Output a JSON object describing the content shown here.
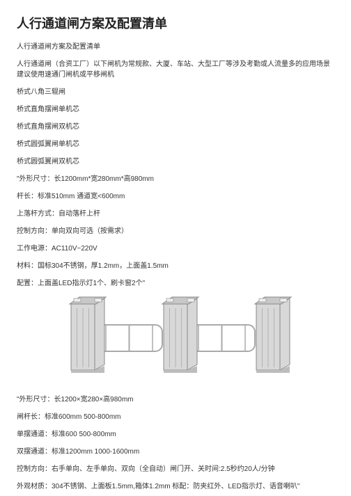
{
  "title": "人行通道闸方案及配置清单",
  "lines": [
    "人行通道闸方案及配置清单",
    "人行通道闸（合资工厂）以下闸机为常规款、大厦、车站、大型工厂等涉及考勤或人流量多的应用场景建议使用速通门闸机或平移闸机",
    "桥式八角三辊闸",
    "桥式直角摆闸单机芯",
    "桥式直角摆闸双机芯",
    "桥式圆弧翼闸单机芯",
    "桥式圆弧翼闸双机芯",
    "\"外形尺寸：长1200mm*宽280mm*高980mm",
    "杆长：标准510mm 通道宽<600mm",
    "上落杆方式：自动落杆上杆",
    "控制方向：单向双向可选（按需求）",
    "工作电源：AC110V~220V",
    "材料：国标304不锈钢，厚1.2mm，上面盖1.5mm",
    "配置：上面盖LED指示灯1个、刷卡窗2个\""
  ],
  "lines2": [
    "\"外形尺寸：长1200×宽280×高980mm",
    "闸杆长：标准600mm 500-800mm",
    "单摆通道：标准600 500-800mm",
    "双摆通道：标准1200mm 1000-1600mm",
    "控制方向：右手单向、左手单向、双向（全自动）闸门开、关时间:2.5秒约20人/分钟",
    "外观材质：304不锈钢、上面板1.5mm,箱体1.2mm 标配：防夹红外、LED指示灯、语音喇叭\""
  ],
  "diagram": {
    "pillar_fill": "#d8d8d8",
    "pillar_stroke": "#888888",
    "top_fill": "#c8c8c8",
    "panel_fill": "#f0f0f0",
    "panel_stroke": "#aaaaaa",
    "line_color": "#999999"
  }
}
